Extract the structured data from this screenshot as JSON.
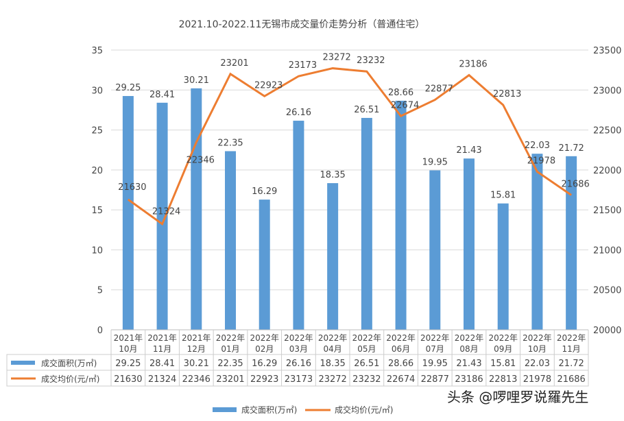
{
  "chart_data": {
    "type": "bar+line",
    "title": "2021.10-2022.11无锡市成交量价走势分析（普通住宅）",
    "categories": [
      [
        "2021年",
        "10月"
      ],
      [
        "2021年",
        "11月"
      ],
      [
        "2021年",
        "12月"
      ],
      [
        "2022年",
        "01月"
      ],
      [
        "2022年",
        "02月"
      ],
      [
        "2022年",
        "03月"
      ],
      [
        "2022年",
        "04月"
      ],
      [
        "2022年",
        "05月"
      ],
      [
        "2022年",
        "06月"
      ],
      [
        "2022年",
        "07月"
      ],
      [
        "2022年",
        "08月"
      ],
      [
        "2022年",
        "09月"
      ],
      [
        "2022年",
        "10月"
      ],
      [
        "2022年",
        "11月"
      ]
    ],
    "series": [
      {
        "name": "成交面积(万㎡)",
        "type": "bar",
        "axis": "left",
        "color": "#5b9bd5",
        "values": [
          29.25,
          28.41,
          30.21,
          22.35,
          16.29,
          26.16,
          18.35,
          26.51,
          28.66,
          19.95,
          21.43,
          15.81,
          22.03,
          21.72
        ]
      },
      {
        "name": "成交均价(元/㎡)",
        "type": "line",
        "axis": "right",
        "color": "#ed7d31",
        "values": [
          21630,
          21324,
          22346,
          23201,
          22923,
          23173,
          23272,
          23232,
          22674,
          22877,
          23186,
          22813,
          21978,
          21686
        ]
      }
    ],
    "y_left": {
      "range": [
        0,
        35
      ],
      "ticks": [
        "0",
        "5",
        "10",
        "15",
        "20",
        "25",
        "30",
        "35"
      ]
    },
    "y_right": {
      "range": [
        20000,
        23500
      ],
      "ticks": [
        "20000",
        "20500",
        "21000",
        "21500",
        "22000",
        "22500",
        "23000",
        "23500"
      ]
    },
    "grid": true,
    "data_table": true,
    "legend": "bottom"
  },
  "watermark": "头条 @啰哩罗说羅先生"
}
